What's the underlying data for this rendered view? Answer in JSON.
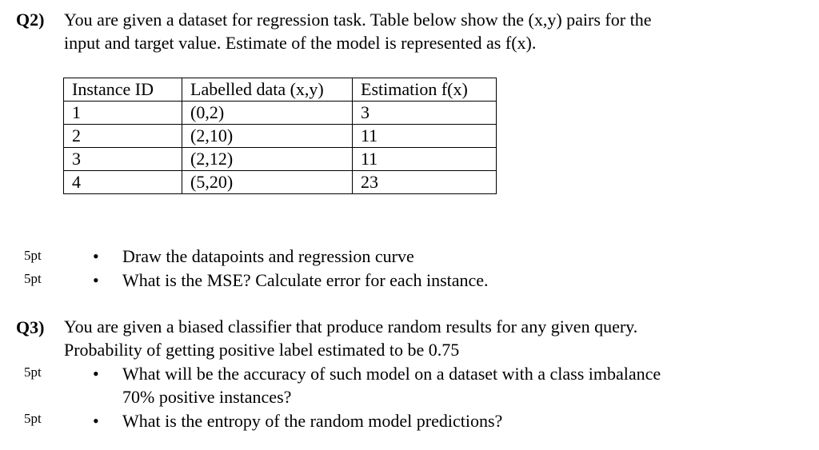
{
  "q2": {
    "label": "Q2)",
    "line1": "You are given a dataset for regression task. Table below show the (x,y) pairs for the",
    "line2": "input and target value. Estimate of the model is represented as f(x).",
    "table": {
      "headers": [
        "Instance ID",
        "Labelled data (x,y)",
        "Estimation f(x)"
      ],
      "rows": [
        [
          "1",
          "(0,2)",
          "3"
        ],
        [
          "2",
          "(2,10)",
          "11"
        ],
        [
          "3",
          "(2,12)",
          "11"
        ],
        [
          "4",
          "(5,20)",
          "23"
        ]
      ]
    },
    "items": [
      {
        "points": "5pt",
        "text": "Draw the datapoints and regression curve"
      },
      {
        "points": "5pt",
        "text": "What is the MSE? Calculate error for each instance."
      }
    ]
  },
  "q3": {
    "label": "Q3)",
    "line1": "You are given a biased classifier that produce random results for any given query.",
    "line2": "Probability of getting positive label estimated to be 0.75",
    "items": [
      {
        "points": "5pt",
        "line1": "What will be the accuracy of such model on a dataset with a class imbalance",
        "line2": "70% positive instances?"
      },
      {
        "points": "5pt",
        "line1": "What is the entropy of the random model predictions?"
      }
    ]
  },
  "bullet": "•"
}
